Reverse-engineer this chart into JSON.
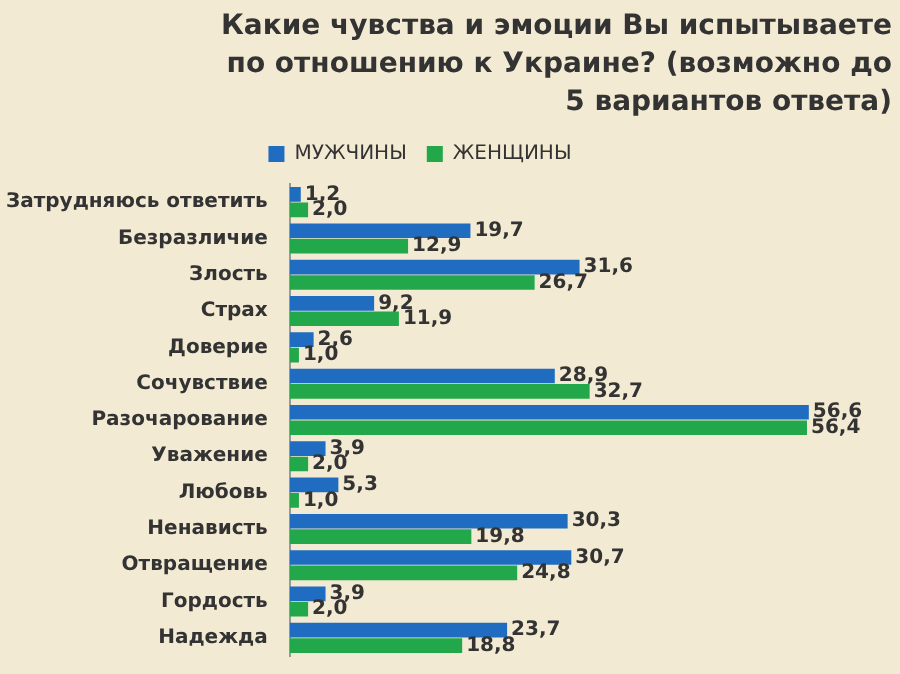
{
  "chart_data": {
    "type": "bar",
    "orientation": "horizontal",
    "title": "Какие чувства и эмоции Вы испытываете по отношению к Украине? (возможно до 5 вариантов ответа)",
    "categories": [
      "Затрудняюсь ответить",
      "Безразличие",
      "Злость",
      "Страх",
      "Доверие",
      "Сочувствие",
      "Разочарование",
      "Уважение",
      "Любовь",
      "Ненависть",
      "Отвращение",
      "Гордость",
      "Надежда"
    ],
    "series": [
      {
        "name": "МУЖЧИНЫ",
        "color": "#1f6cc0",
        "values": [
          1.2,
          19.7,
          31.6,
          9.2,
          2.6,
          28.9,
          56.6,
          3.9,
          5.3,
          30.3,
          30.7,
          3.9,
          23.7
        ],
        "value_labels": [
          "1,2",
          "19,7",
          "31,6",
          "9,2",
          "2,6",
          "28,9",
          "56,6",
          "3,9",
          "5,3",
          "30,3",
          "30,7",
          "3,9",
          "23,7"
        ]
      },
      {
        "name": "ЖЕНЩИНЫ",
        "color": "#22a84a",
        "values": [
          2.0,
          12.9,
          26.7,
          11.9,
          1.0,
          32.7,
          56.4,
          2.0,
          1.0,
          19.8,
          24.8,
          2.0,
          18.8
        ],
        "value_labels": [
          "2,0",
          "12,9",
          "26,7",
          "11,9",
          "1,0",
          "32,7",
          "56,4",
          "2,0",
          "1,0",
          "19,8",
          "24,8",
          "2,0",
          "18,8"
        ]
      }
    ],
    "legend": "top",
    "tick_labels": "y",
    "grid": false
  }
}
